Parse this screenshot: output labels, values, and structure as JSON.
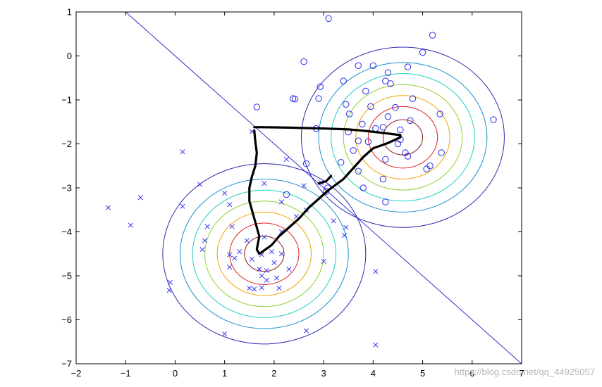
{
  "chart_data": {
    "type": "scatter",
    "xlim": [
      -2,
      7
    ],
    "ylim": [
      -7,
      1
    ],
    "xticks": [
      -2,
      -1,
      0,
      1,
      2,
      3,
      4,
      5,
      6,
      7
    ],
    "yticks": [
      1,
      0,
      -1,
      -2,
      -3,
      -4,
      -5,
      -6,
      -7
    ],
    "grid": false,
    "series": [
      {
        "marker": "circle",
        "color": "#2d2df0",
        "points": [
          [
            3.1,
            0.85
          ],
          [
            5.2,
            0.47
          ],
          [
            5.0,
            0.08
          ],
          [
            2.6,
            -0.13
          ],
          [
            3.7,
            -0.22
          ],
          [
            4.0,
            -0.22
          ],
          [
            4.7,
            -0.25
          ],
          [
            4.3,
            -0.38
          ],
          [
            3.4,
            -0.57
          ],
          [
            4.25,
            -0.57
          ],
          [
            4.35,
            -0.63
          ],
          [
            2.93,
            -0.7
          ],
          [
            3.85,
            -0.8
          ],
          [
            4.8,
            -0.97
          ],
          [
            2.38,
            -0.97
          ],
          [
            2.42,
            -0.98
          ],
          [
            2.9,
            -0.97
          ],
          [
            3.45,
            -1.1
          ],
          [
            3.95,
            -1.15
          ],
          [
            1.65,
            -1.16
          ],
          [
            4.45,
            -1.17
          ],
          [
            3.52,
            -1.32
          ],
          [
            5.35,
            -1.32
          ],
          [
            4.3,
            -1.38
          ],
          [
            4.75,
            -1.47
          ],
          [
            3.78,
            -1.55
          ],
          [
            4.05,
            -1.65
          ],
          [
            6.43,
            -1.45
          ],
          [
            2.85,
            -1.65
          ],
          [
            4.2,
            -1.62
          ],
          [
            4.55,
            -1.68
          ],
          [
            3.5,
            -1.73
          ],
          [
            3.7,
            -1.93
          ],
          [
            4.55,
            -1.9
          ],
          [
            3.9,
            -1.95
          ],
          [
            4.5,
            -2.0
          ],
          [
            4.65,
            -2.2
          ],
          [
            5.38,
            -2.2
          ],
          [
            4.7,
            -2.28
          ],
          [
            3.6,
            -2.15
          ],
          [
            4.25,
            -2.35
          ],
          [
            3.35,
            -2.42
          ],
          [
            5.15,
            -2.5
          ],
          [
            2.65,
            -2.45
          ],
          [
            5.08,
            -2.57
          ],
          [
            3.7,
            -2.62
          ],
          [
            4.2,
            -2.8
          ],
          [
            3.08,
            -3.0
          ],
          [
            3.8,
            -3.0
          ],
          [
            4.25,
            -3.32
          ],
          [
            3.05,
            -3.08
          ],
          [
            2.25,
            -3.15
          ]
        ]
      },
      {
        "marker": "x",
        "color": "#2d2df0",
        "points": [
          [
            1.55,
            -1.72
          ],
          [
            0.15,
            -2.18
          ],
          [
            2.25,
            -2.35
          ],
          [
            -1.35,
            -3.45
          ],
          [
            -0.7,
            -3.22
          ],
          [
            -0.9,
            -3.85
          ],
          [
            0.15,
            -3.42
          ],
          [
            0.5,
            -2.92
          ],
          [
            1.0,
            -3.12
          ],
          [
            1.1,
            -3.38
          ],
          [
            1.8,
            -2.9
          ],
          [
            2.15,
            -3.32
          ],
          [
            2.6,
            -2.95
          ],
          [
            2.95,
            -2.88
          ],
          [
            2.45,
            -3.65
          ],
          [
            2.65,
            -3.5
          ],
          [
            0.65,
            -3.88
          ],
          [
            1.15,
            -3.88
          ],
          [
            3.2,
            -3.75
          ],
          [
            3.45,
            -3.9
          ],
          [
            3.42,
            -4.08
          ],
          [
            0.6,
            -4.2
          ],
          [
            0.55,
            -4.4
          ],
          [
            1.3,
            -4.45
          ],
          [
            1.45,
            -4.2
          ],
          [
            1.8,
            -4.12
          ],
          [
            1.2,
            -4.6
          ],
          [
            1.1,
            -4.52
          ],
          [
            1.75,
            -4.52
          ],
          [
            1.95,
            -4.45
          ],
          [
            2.15,
            -4.5
          ],
          [
            1.55,
            -4.62
          ],
          [
            1.7,
            -4.85
          ],
          [
            1.85,
            -4.88
          ],
          [
            1.75,
            -5.0
          ],
          [
            1.85,
            -5.1
          ],
          [
            2.05,
            -5.05
          ],
          [
            1.5,
            -5.28
          ],
          [
            1.6,
            -5.3
          ],
          [
            1.75,
            -5.27
          ],
          [
            2.1,
            -5.28
          ],
          [
            2.3,
            -4.85
          ],
          [
            1.1,
            -4.8
          ],
          [
            -0.1,
            -5.15
          ],
          [
            -0.12,
            -5.33
          ],
          [
            2.0,
            -4.7
          ],
          [
            3.0,
            -4.67
          ],
          [
            4.05,
            -4.9
          ],
          [
            2.65,
            -6.25
          ],
          [
            1.0,
            -6.32
          ],
          [
            4.05,
            -6.57
          ],
          [
            2.15,
            -4.0
          ]
        ]
      }
    ],
    "decision_boundary": [
      [
        -1,
        1
      ],
      [
        7,
        -7
      ]
    ],
    "gaussians": [
      {
        "center": [
          4.6,
          -1.85
        ],
        "radii": [
          0.4,
          0.7,
          0.95,
          1.2,
          1.45,
          1.7,
          2.05
        ]
      },
      {
        "center": [
          1.8,
          -4.5
        ],
        "radii": [
          0.4,
          0.7,
          0.95,
          1.2,
          1.45,
          1.7,
          2.05
        ]
      }
    ],
    "contour_colors": [
      "#8b1a1a",
      "#e02020",
      "#f0a000",
      "#8fd030",
      "#20d0c0",
      "#1a8fd0",
      "#2a2ab0"
    ],
    "handdrawn_path": [
      [
        1.6,
        -1.62
      ],
      [
        1.75,
        -1.62
      ],
      [
        2.3,
        -1.63
      ],
      [
        3.0,
        -1.65
      ],
      [
        3.5,
        -1.67
      ],
      [
        3.8,
        -1.7
      ],
      [
        4.2,
        -1.75
      ],
      [
        4.55,
        -1.8
      ],
      [
        4.55,
        -1.85
      ],
      [
        4.3,
        -1.98
      ],
      [
        4.0,
        -2.1
      ],
      [
        3.8,
        -2.3
      ],
      [
        3.6,
        -2.55
      ],
      [
        3.4,
        -2.8
      ],
      [
        3.1,
        -3.05
      ],
      [
        2.9,
        -3.25
      ],
      [
        2.7,
        -3.45
      ],
      [
        2.5,
        -3.7
      ],
      [
        2.3,
        -3.9
      ],
      [
        2.1,
        -4.1
      ],
      [
        1.95,
        -4.3
      ],
      [
        1.7,
        -4.5
      ],
      [
        1.65,
        -4.4
      ],
      [
        1.7,
        -4.1
      ],
      [
        1.65,
        -3.9
      ],
      [
        1.6,
        -3.7
      ],
      [
        1.55,
        -3.5
      ],
      [
        1.5,
        -3.3
      ],
      [
        1.5,
        -3.0
      ],
      [
        1.55,
        -2.75
      ],
      [
        1.62,
        -2.5
      ],
      [
        1.65,
        -2.2
      ],
      [
        1.62,
        -1.95
      ],
      [
        1.6,
        -1.7
      ]
    ],
    "handdrawn_spur": [
      [
        2.9,
        -2.9
      ],
      [
        3.05,
        -2.85
      ],
      [
        3.15,
        -2.73
      ]
    ]
  },
  "watermark": "https://blog.csdn.net/qq_44925057"
}
